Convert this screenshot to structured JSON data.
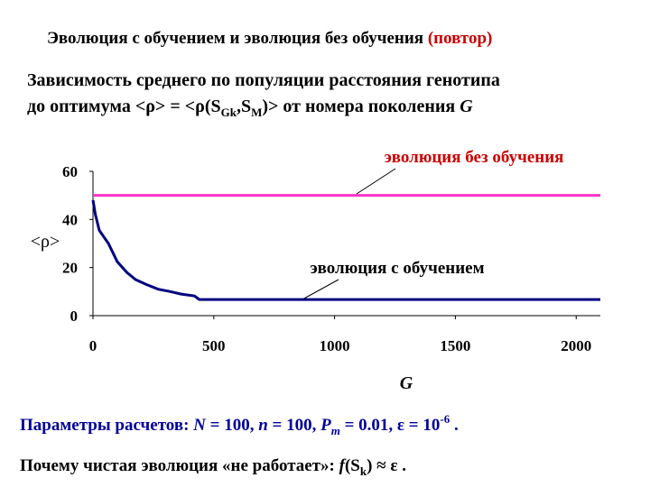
{
  "slide": {
    "title": "Эволюция с обучением и эволюция без обучения",
    "title_note": "(повтор)",
    "subtitle_line1": "Зависимость среднего по популяции расстояния генотипа",
    "subtitle_line2": [
      "до оптимума <ρ> = <ρ(S",
      "Gk",
      ",S",
      "M",
      ")>  от номера поколения ",
      "G"
    ],
    "params": [
      "Параметры расчетов: ",
      "N",
      " = 100, ",
      "n",
      " =  100, ",
      "P",
      "m",
      " = 0.01, ε = 10",
      "-6",
      " ."
    ],
    "question": [
      "Почему чистая эволюция «не работает»: ",
      "f",
      "(S",
      "k",
      ") ≈ ε ."
    ]
  },
  "chart_data": {
    "type": "line",
    "y_label": "<ρ>",
    "x_label": "G",
    "xlim": [
      0,
      2100
    ],
    "ylim": [
      0,
      60
    ],
    "xticks": [
      0,
      500,
      1000,
      1500,
      2000
    ],
    "yticks": [
      0,
      20,
      40,
      60
    ],
    "series": [
      {
        "name": "эволюция без обучения",
        "color": "#ff33cc",
        "x": [
          0,
          2100
        ],
        "values": [
          50,
          50
        ]
      },
      {
        "name": "эволюция с обучением",
        "color": "#000080",
        "x": [
          0,
          10,
          26,
          50,
          64,
          100,
          140,
          176,
          220,
          270,
          320,
          363,
          420,
          440,
          2100
        ],
        "values": [
          48,
          42,
          35.5,
          32,
          30,
          22.5,
          18,
          15,
          13,
          11,
          10,
          9,
          8.2,
          6.7,
          6.7
        ]
      }
    ]
  }
}
